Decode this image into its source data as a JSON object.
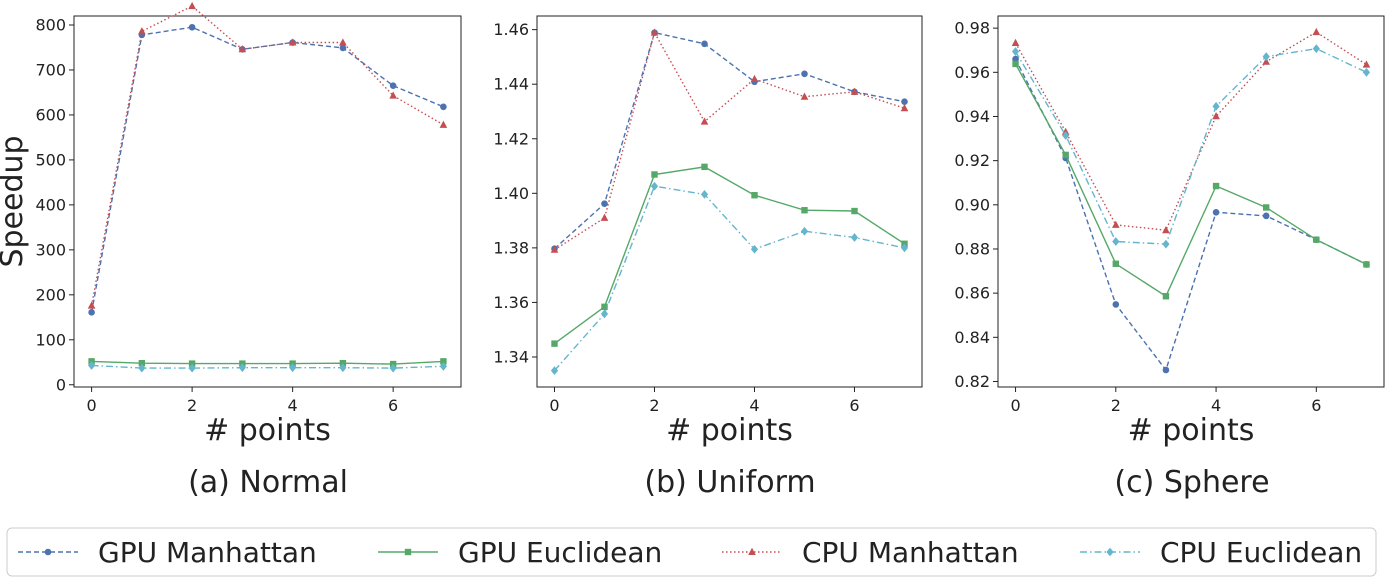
{
  "legend": {
    "items": [
      {
        "label": "GPU Manhattan",
        "color": "#4c72b0",
        "marker": "circle",
        "dash": "dashed"
      },
      {
        "label": "GPU Euclidean",
        "color": "#55a868",
        "marker": "square",
        "dash": "solid"
      },
      {
        "label": "CPU Manhattan",
        "color": "#c44e52",
        "marker": "triangle",
        "dash": "dotted"
      },
      {
        "label": "CPU Euclidean",
        "color": "#64b5cd",
        "marker": "diamond",
        "dash": "dashdot"
      }
    ],
    "placement": "bottom-center"
  },
  "chart_data": [
    {
      "type": "line",
      "caption": "(a) Normal",
      "xlabel": "# points",
      "ylabel": "Speedup",
      "x": [
        0,
        1,
        2,
        3,
        4,
        5,
        6,
        7
      ],
      "xlim": [
        -0.35,
        7.35
      ],
      "ylim": [
        -5,
        820
      ],
      "xticks": [
        0,
        2,
        4,
        6
      ],
      "yticks": [
        0,
        100,
        200,
        300,
        400,
        500,
        600,
        700,
        800
      ],
      "ytick_labels": [
        "0",
        "100",
        "200",
        "300",
        "400",
        "500",
        "600",
        "700",
        "800"
      ],
      "series": [
        {
          "name": "GPU Manhattan",
          "values": [
            161,
            778,
            795,
            746,
            761,
            749,
            665,
            618
          ]
        },
        {
          "name": "GPU Euclidean",
          "values": [
            52,
            48,
            47,
            47,
            47,
            48,
            46,
            52
          ]
        },
        {
          "name": "CPU Manhattan",
          "values": [
            176,
            786,
            842,
            746,
            761,
            761,
            643,
            578
          ]
        },
        {
          "name": "CPU Euclidean",
          "values": [
            43,
            37,
            37,
            38,
            38,
            38,
            37,
            41
          ]
        }
      ]
    },
    {
      "type": "line",
      "caption": "(b) Uniform",
      "xlabel": "# points",
      "ylabel": "",
      "x": [
        0,
        1,
        2,
        3,
        4,
        5,
        6,
        7
      ],
      "xlim": [
        -0.35,
        7.35
      ],
      "ylim": [
        1.329,
        1.465
      ],
      "xticks": [
        0,
        2,
        4,
        6
      ],
      "yticks": [
        1.34,
        1.36,
        1.38,
        1.4,
        1.42,
        1.44,
        1.46
      ],
      "ytick_labels": [
        "1.34",
        "1.36",
        "1.38",
        "1.40",
        "1.42",
        "1.44",
        "1.46"
      ],
      "series": [
        {
          "name": "GPU Manhattan",
          "values": [
            1.3797,
            1.3962,
            1.4589,
            1.4548,
            1.4409,
            1.4438,
            1.4372,
            1.4336
          ]
        },
        {
          "name": "GPU Euclidean",
          "values": [
            1.3449,
            1.3584,
            1.4069,
            1.4097,
            1.3993,
            1.3938,
            1.3935,
            1.3815
          ]
        },
        {
          "name": "CPU Manhattan",
          "values": [
            1.3793,
            1.391,
            1.4589,
            1.4263,
            1.4419,
            1.4354,
            1.4372,
            1.4312
          ]
        },
        {
          "name": "CPU Euclidean",
          "values": [
            1.335,
            1.3558,
            1.4026,
            1.3996,
            1.3795,
            1.3861,
            1.3838,
            1.38
          ]
        }
      ]
    },
    {
      "type": "line",
      "caption": "(c) Sphere",
      "xlabel": "# points",
      "ylabel": "",
      "x": [
        0,
        1,
        2,
        3,
        4,
        5,
        6,
        7
      ],
      "xlim": [
        -0.35,
        7.35
      ],
      "ylim": [
        0.8175,
        0.9855
      ],
      "xticks": [
        0,
        2,
        4,
        6
      ],
      "yticks": [
        0.82,
        0.84,
        0.86,
        0.88,
        0.9,
        0.92,
        0.94,
        0.96,
        0.98
      ],
      "ytick_labels": [
        "0.82",
        "0.84",
        "0.86",
        "0.88",
        "0.90",
        "0.92",
        "0.94",
        "0.96",
        "0.98"
      ],
      "series": [
        {
          "name": "GPU Manhattan",
          "values": [
            0.966,
            0.9212,
            0.8549,
            0.8252,
            0.8966,
            0.895,
            0.8842,
            0.873
          ]
        },
        {
          "name": "GPU Euclidean",
          "values": [
            0.9638,
            0.9226,
            0.8733,
            0.8586,
            0.9085,
            0.8988,
            0.8842,
            0.873
          ]
        },
        {
          "name": "CPU Manhattan",
          "values": [
            0.9733,
            0.933,
            0.8909,
            0.8885,
            0.9401,
            0.9648,
            0.9782,
            0.9635
          ]
        },
        {
          "name": "CPU Euclidean",
          "values": [
            0.9694,
            0.9314,
            0.8834,
            0.8822,
            0.9446,
            0.9671,
            0.9707,
            0.96
          ]
        }
      ]
    }
  ]
}
